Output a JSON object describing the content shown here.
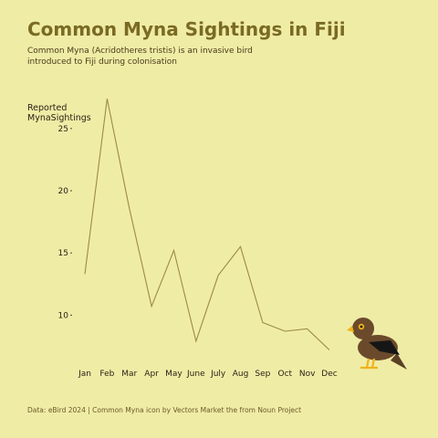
{
  "chart_data": {
    "type": "line",
    "title": "Common Myna Sightings in Fiji",
    "subtitle": "Common Myna (Acridotheres tristis) is an invasive bird introduced to Fiji during colonisation",
    "ylabel": "Reported MynaSightings",
    "xlabel": "",
    "categories": [
      "Jan",
      "Feb",
      "Mar",
      "Apr",
      "May",
      "June",
      "July",
      "Aug",
      "Sep",
      "Oct",
      "Nov",
      "Dec"
    ],
    "values": [
      13.3,
      27.4,
      18.6,
      10.7,
      15.2,
      7.9,
      13.2,
      15.5,
      9.4,
      8.7,
      8.9,
      7.2
    ],
    "yticks": [
      10,
      15,
      20,
      25
    ],
    "ylim": [
      6.5,
      28
    ],
    "grid": false,
    "legend": "none",
    "caption": "Data: eBird 2024 | Common Myna icon by Vectors Market the from Noun Project"
  },
  "colors": {
    "background": "#efeca6",
    "line": "#9b8a45",
    "title": "#7a6a24"
  },
  "icon": "common-myna-bird-icon"
}
